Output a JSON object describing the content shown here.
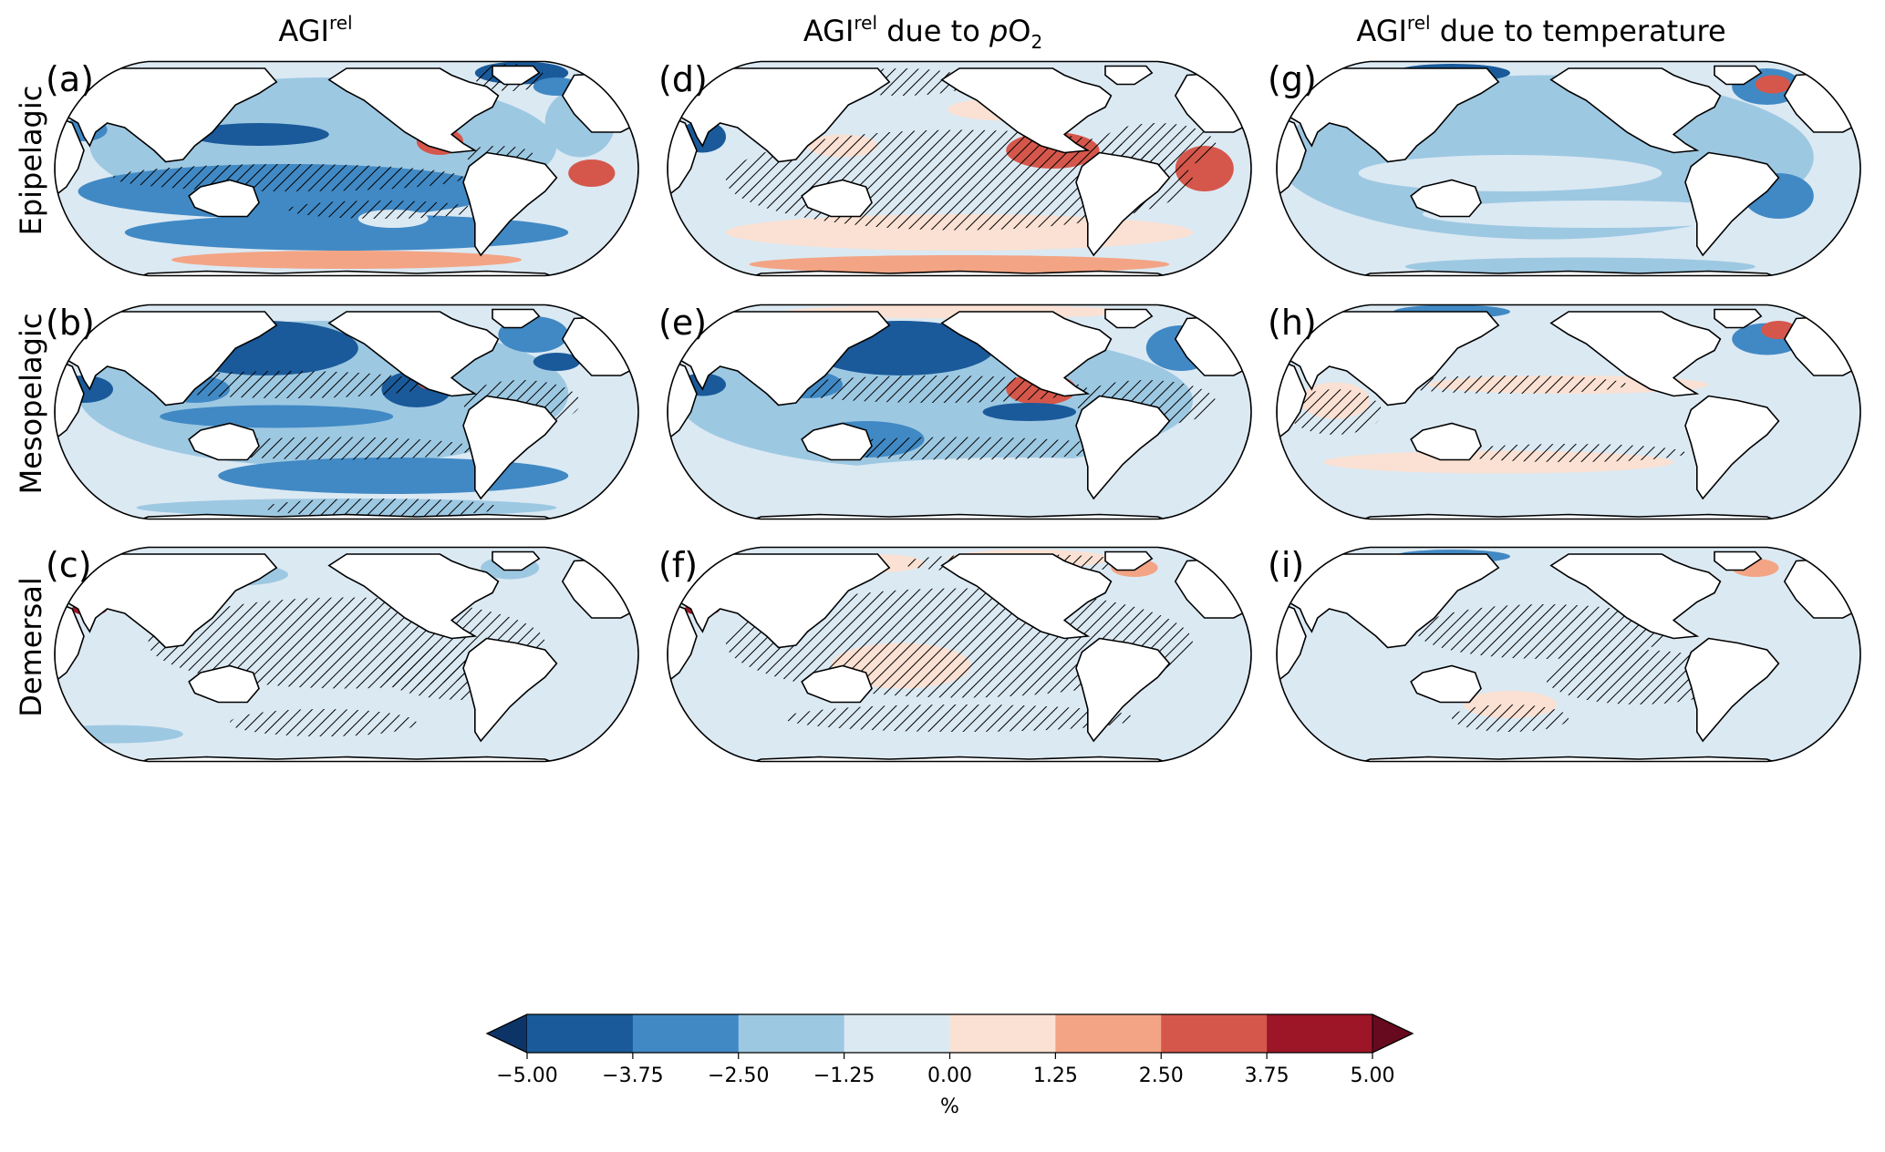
{
  "columns": [
    {
      "main": "AGI",
      "sup": "rel",
      "rest_prefix": "",
      "italic": "",
      "rest_suffix": "",
      "sub": ""
    },
    {
      "main": "AGI",
      "sup": "rel",
      "rest_prefix": " due to ",
      "italic": "p",
      "rest_suffix": "O",
      "sub": "2"
    },
    {
      "main": "AGI",
      "sup": "rel",
      "rest_prefix": " due to temperature",
      "italic": "",
      "rest_suffix": "",
      "sub": ""
    }
  ],
  "rows": [
    "Epipelagic",
    "Mesopelagic",
    "Demersal"
  ],
  "panels": [
    {
      "label": "(a)",
      "row": 0,
      "col": 0,
      "variable": "total"
    },
    {
      "label": "(b)",
      "row": 1,
      "col": 0,
      "variable": "total"
    },
    {
      "label": "(c)",
      "row": 2,
      "col": 0,
      "variable": "total"
    },
    {
      "label": "(d)",
      "row": 0,
      "col": 1,
      "variable": "pO2"
    },
    {
      "label": "(e)",
      "row": 1,
      "col": 1,
      "variable": "pO2"
    },
    {
      "label": "(f)",
      "row": 2,
      "col": 1,
      "variable": "pO2"
    },
    {
      "label": "(g)",
      "row": 0,
      "col": 2,
      "variable": "temperature"
    },
    {
      "label": "(h)",
      "row": 1,
      "col": 2,
      "variable": "temperature"
    },
    {
      "label": "(i)",
      "row": 2,
      "col": 2,
      "variable": "temperature"
    }
  ],
  "colorbar": {
    "label": "%",
    "ticks": [
      "−5.00",
      "−3.75",
      "−2.50",
      "−1.25",
      "0.00",
      "1.25",
      "2.50",
      "3.75",
      "5.00"
    ],
    "bins": [
      {
        "from": -5.0,
        "to": -3.75,
        "color": "#1a5a9a"
      },
      {
        "from": -3.75,
        "to": -2.5,
        "color": "#4189c4"
      },
      {
        "from": -2.5,
        "to": -1.25,
        "color": "#9dc8e2"
      },
      {
        "from": -1.25,
        "to": 0.0,
        "color": "#dbe9f3"
      },
      {
        "from": 0.0,
        "to": 1.25,
        "color": "#fae1d3"
      },
      {
        "from": 1.25,
        "to": 2.5,
        "color": "#f3a484"
      },
      {
        "from": 2.5,
        "to": 3.75,
        "color": "#d5574b"
      },
      {
        "from": 3.75,
        "to": 5.0,
        "color": "#9c1628"
      }
    ],
    "extend_low_color": "#0d3466",
    "extend_high_color": "#670a1f"
  },
  "colors": {
    "land": "#ffffff",
    "coast": "#000000",
    "hatch": "#000000"
  }
}
